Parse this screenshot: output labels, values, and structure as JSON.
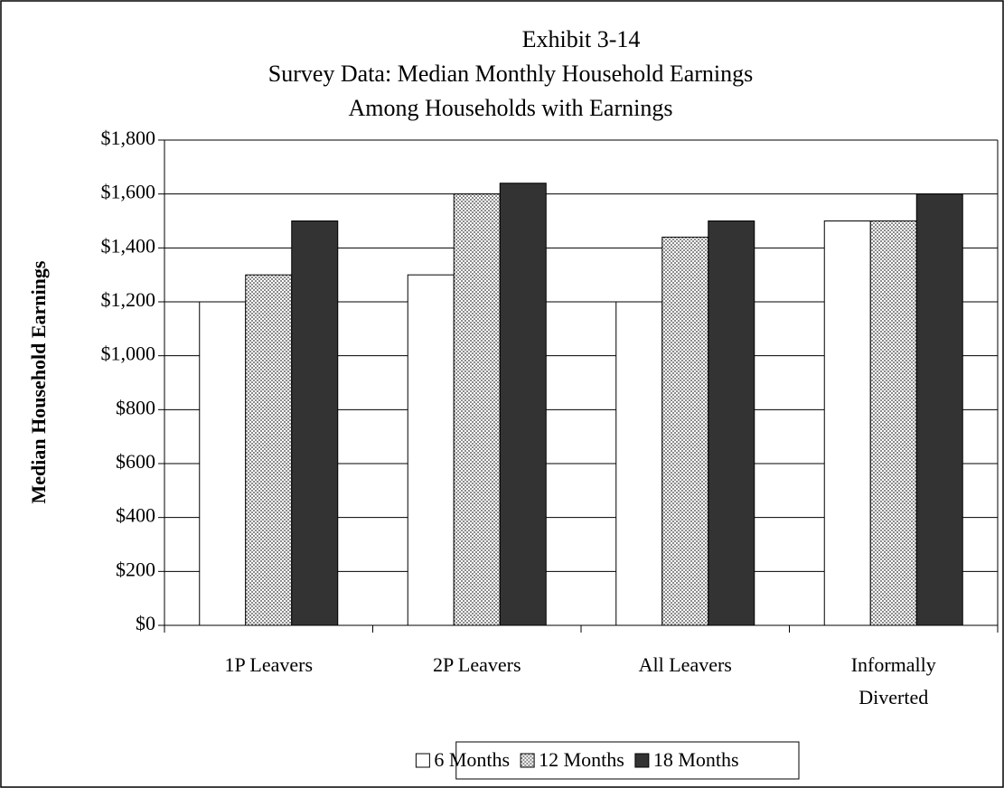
{
  "chart_data": {
    "type": "bar",
    "title": [
      "Exhibit 3-14",
      "Survey Data:  Median Monthly Household Earnings",
      "Among Households with Earnings"
    ],
    "y_label": "Median Household Earnings",
    "categories": [
      "1P Leavers",
      "2P Leavers",
      "All Leavers",
      "Informally Diverted"
    ],
    "series": [
      {
        "name": "6 Months",
        "color": "#ffffff",
        "values": [
          1200,
          1300,
          1200,
          1500
        ]
      },
      {
        "name": "12 Months",
        "color": "#8c8c8c",
        "pattern": "checker",
        "values": [
          1300,
          1600,
          1440,
          1500
        ]
      },
      {
        "name": "18 Months",
        "color": "#333333",
        "values": [
          1500,
          1640,
          1500,
          1600
        ]
      }
    ],
    "ylim": [
      0,
      1800
    ],
    "yticks": [
      {
        "value": 0,
        "label": "$0"
      },
      {
        "value": 200,
        "label": "$200"
      },
      {
        "value": 400,
        "label": "$400"
      },
      {
        "value": 600,
        "label": "$600"
      },
      {
        "value": 800,
        "label": "$800"
      },
      {
        "value": 1000,
        "label": "$1,000"
      },
      {
        "value": 1200,
        "label": "$1,200"
      },
      {
        "value": 1400,
        "label": "$1,400"
      },
      {
        "value": 1600,
        "label": "$1,600"
      },
      {
        "value": 1800,
        "label": "$1,800"
      }
    ],
    "grid": true,
    "legend": "bottom"
  }
}
